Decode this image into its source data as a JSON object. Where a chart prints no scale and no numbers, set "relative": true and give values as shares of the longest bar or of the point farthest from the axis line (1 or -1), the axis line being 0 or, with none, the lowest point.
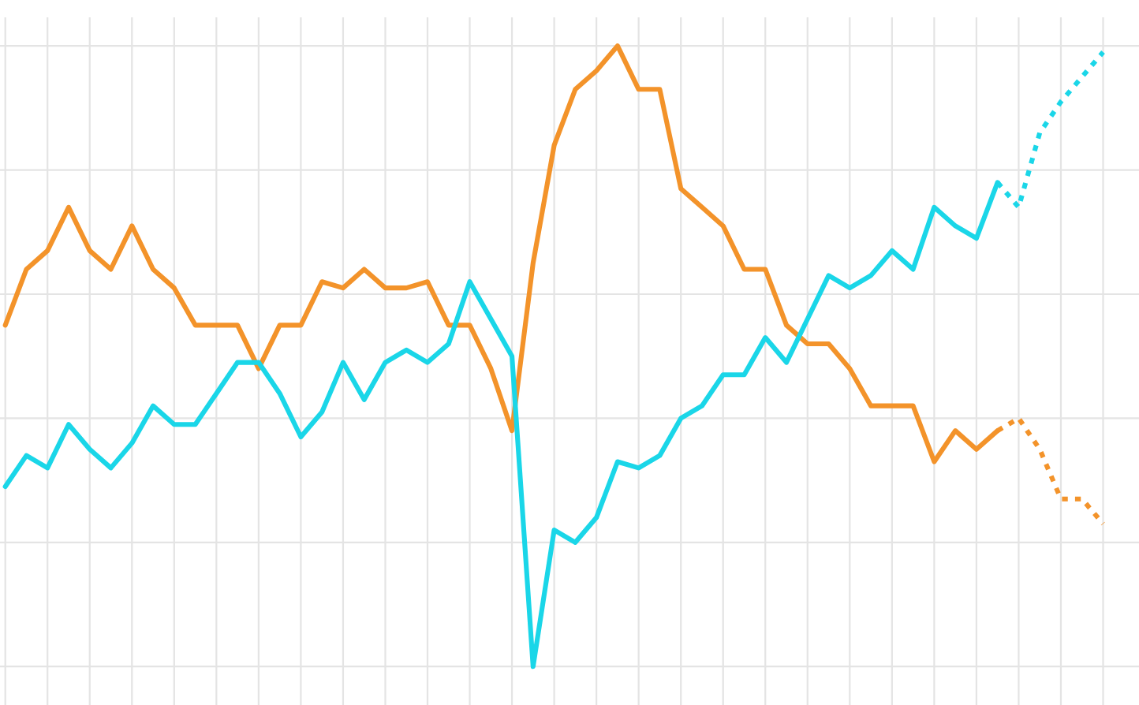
{
  "chart_data": {
    "type": "line",
    "relative": true,
    "grid": true,
    "line_style": "solid",
    "categories": [
      null,
      null,
      null,
      null,
      null,
      null,
      null,
      null,
      null,
      null,
      null,
      null,
      null,
      null,
      null,
      null,
      null,
      null,
      null,
      null,
      null,
      null,
      null,
      null,
      null,
      null,
      null,
      null,
      null,
      null,
      null,
      null,
      null,
      null,
      null,
      null,
      null,
      null,
      null,
      null,
      null,
      null,
      null,
      null,
      null,
      null,
      null,
      null,
      null,
      null,
      null,
      null,
      null
    ],
    "series": [
      {
        "color": "#f3932a",
        "values": [
          0.55,
          0.64,
          0.67,
          0.74,
          0.67,
          0.64,
          0.71,
          0.64,
          0.61,
          0.55,
          0.55,
          0.55,
          0.48,
          0.55,
          0.55,
          0.62,
          0.61,
          0.64,
          0.61,
          0.61,
          0.62,
          0.55,
          0.55,
          0.48,
          0.38,
          0.65,
          0.84,
          0.93,
          0.96,
          1,
          0.93,
          0.93,
          0.77,
          0.74,
          0.71,
          0.64,
          0.64,
          0.55,
          0.52,
          0.52,
          0.48,
          0.42,
          0.42,
          0.42,
          0.33,
          0.38,
          0.35,
          0.38,
          null,
          null,
          null,
          null,
          null
        ]
      },
      {
        "color": "#1ad6e8",
        "values": [
          0.29,
          0.34,
          0.32,
          0.39,
          0.35,
          0.32,
          0.36,
          0.42,
          0.39,
          0.39,
          0.44,
          0.49,
          0.49,
          0.44,
          0.37,
          0.41,
          0.49,
          0.43,
          0.49,
          0.51,
          0.49,
          0.52,
          0.62,
          0.56,
          0.5,
          0,
          0.22,
          0.2,
          0.24,
          0.33,
          0.32,
          0.34,
          0.4,
          0.42,
          0.47,
          0.47,
          0.53,
          0.49,
          0.56,
          0.63,
          0.61,
          0.63,
          0.67,
          0.64,
          0.74,
          0.71,
          0.69,
          0.78,
          null,
          null,
          null,
          null,
          null
        ]
      },
      {
        "color": "#f3932a",
        "line_style": "dotted",
        "values": [
          null,
          null,
          null,
          null,
          null,
          null,
          null,
          null,
          null,
          null,
          null,
          null,
          null,
          null,
          null,
          null,
          null,
          null,
          null,
          null,
          null,
          null,
          null,
          null,
          null,
          null,
          null,
          null,
          null,
          null,
          null,
          null,
          null,
          null,
          null,
          null,
          null,
          null,
          null,
          null,
          null,
          null,
          null,
          null,
          null,
          null,
          null,
          0.38,
          0.4,
          0.35,
          0.27,
          0.27,
          0.23
        ]
      },
      {
        "color": "#1ad6e8",
        "line_style": "dotted",
        "values": [
          null,
          null,
          null,
          null,
          null,
          null,
          null,
          null,
          null,
          null,
          null,
          null,
          null,
          null,
          null,
          null,
          null,
          null,
          null,
          null,
          null,
          null,
          null,
          null,
          null,
          null,
          null,
          null,
          null,
          null,
          null,
          null,
          null,
          null,
          null,
          null,
          null,
          null,
          null,
          null,
          null,
          null,
          null,
          null,
          null,
          null,
          null,
          0.78,
          0.74,
          0.86,
          0.91,
          0.95,
          0.99
        ]
      }
    ]
  }
}
